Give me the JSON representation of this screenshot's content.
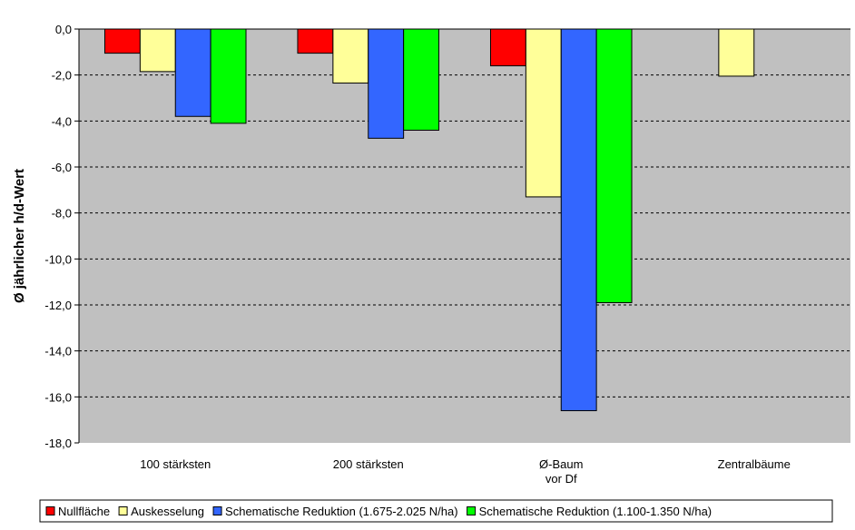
{
  "chart_data": {
    "type": "bar",
    "title": "",
    "xlabel": "",
    "ylabel": "Ø jährlicher h/d-Wert",
    "ylim": [
      -18,
      0
    ],
    "yticks": [
      0,
      -2,
      -4,
      -6,
      -8,
      -10,
      -12,
      -14,
      -16,
      -18
    ],
    "ytick_labels": [
      "0,0",
      "-2,0",
      "-4,0",
      "-6,0",
      "-8,0",
      "-10,0",
      "-12,0",
      "-14,0",
      "-16,0",
      "-18,0"
    ],
    "grid": true,
    "legend_position": "bottom",
    "categories": [
      [
        "100 stärksten"
      ],
      [
        "200 stärksten"
      ],
      [
        "Ø-Baum",
        "vor Df"
      ],
      [
        "Zentralbäume"
      ]
    ],
    "series": [
      {
        "name": "Nullfläche",
        "color": "#ff0000",
        "values": [
          -1.05,
          -1.05,
          -1.6,
          null
        ]
      },
      {
        "name": "Auskesselung",
        "color": "#ffff99",
        "values": [
          -1.85,
          -2.35,
          -7.3,
          -2.05
        ]
      },
      {
        "name": "Schematische Reduktion (1.675-2.025 N/ha)",
        "color": "#3366ff",
        "values": [
          -3.8,
          -4.75,
          -16.6,
          null
        ]
      },
      {
        "name": "Schematische Reduktion (1.100-1.350 N/ha)",
        "color": "#00ff00",
        "values": [
          -4.1,
          -4.4,
          -11.9,
          null
        ]
      }
    ]
  }
}
